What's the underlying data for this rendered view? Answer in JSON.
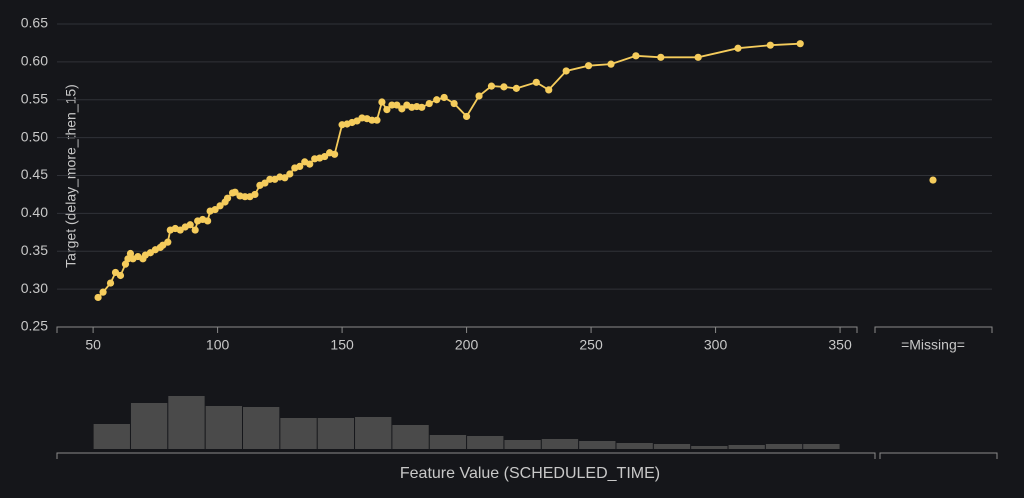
{
  "chart_data": {
    "type": "line",
    "ylabel": "Target (delay_more_then_15)",
    "xlabel": "Feature Value (SCHEDULED_TIME)",
    "color": "#f5cc5c",
    "grid": true,
    "x": [
      52,
      54,
      57,
      59,
      61,
      63,
      64,
      65,
      66,
      68,
      70,
      71,
      73,
      75,
      77,
      78,
      80,
      81,
      83,
      85,
      87,
      89,
      91,
      92,
      94,
      96,
      97,
      99,
      101,
      103,
      104,
      106,
      107,
      109,
      111,
      113,
      115,
      117,
      119,
      121,
      123,
      125,
      127,
      129,
      131,
      133,
      135,
      137,
      139,
      141,
      143,
      145,
      147,
      150,
      152,
      154,
      156,
      158,
      160,
      162,
      164,
      166,
      168,
      170,
      172,
      174,
      176,
      178,
      180,
      182,
      185,
      188,
      191,
      195,
      200,
      205,
      210,
      215,
      220,
      228,
      233,
      240,
      249,
      258,
      268,
      278,
      293,
      309,
      322,
      334
    ],
    "values": [
      0.289,
      0.296,
      0.308,
      0.322,
      0.318,
      0.333,
      0.34,
      0.347,
      0.34,
      0.343,
      0.34,
      0.345,
      0.348,
      0.352,
      0.355,
      0.358,
      0.362,
      0.378,
      0.38,
      0.378,
      0.382,
      0.385,
      0.378,
      0.39,
      0.392,
      0.39,
      0.403,
      0.405,
      0.41,
      0.415,
      0.42,
      0.427,
      0.428,
      0.423,
      0.422,
      0.422,
      0.425,
      0.437,
      0.44,
      0.445,
      0.445,
      0.448,
      0.447,
      0.452,
      0.46,
      0.462,
      0.468,
      0.465,
      0.472,
      0.473,
      0.475,
      0.48,
      0.478,
      0.517,
      0.518,
      0.52,
      0.522,
      0.526,
      0.525,
      0.523,
      0.523,
      0.547,
      0.537,
      0.543,
      0.543,
      0.538,
      0.543,
      0.54,
      0.541,
      0.54,
      0.545,
      0.55,
      0.553,
      0.545,
      0.528,
      0.555,
      0.568,
      0.567,
      0.565,
      0.573,
      0.563,
      0.588,
      0.595,
      0.597,
      0.608,
      0.606,
      0.606,
      0.618,
      0.622,
      0.624
    ],
    "missing": {
      "label": "=Missing=",
      "value": 0.444
    },
    "xlim": [
      35.5,
      356
    ],
    "xticks": [
      50,
      100,
      150,
      200,
      250,
      300,
      350
    ],
    "ylim": [
      0.25,
      0.65
    ],
    "yticks": [
      {
        "value": 0.25,
        "label": "0.25"
      },
      {
        "value": 0.3,
        "label": "0.30"
      },
      {
        "value": 0.35,
        "label": "0.35"
      },
      {
        "value": 0.4,
        "label": "0.40"
      },
      {
        "value": 0.45,
        "label": "0.45"
      },
      {
        "value": 0.5,
        "label": "0.50"
      },
      {
        "value": 0.55,
        "label": "0.55"
      },
      {
        "value": 0.6,
        "label": "0.60"
      },
      {
        "value": 0.65,
        "label": "0.65"
      }
    ],
    "histogram": {
      "color": "#4a4a4a",
      "bins": [
        50,
        65,
        80,
        95,
        110,
        125,
        140,
        155,
        170,
        185,
        200,
        215,
        230,
        245,
        260,
        275,
        290,
        305,
        320,
        335,
        350
      ],
      "counts": [
        25,
        46,
        53,
        43,
        42,
        31,
        31,
        32,
        24,
        14,
        13,
        9,
        10,
        8,
        6,
        5,
        3,
        4,
        5,
        5
      ]
    }
  }
}
